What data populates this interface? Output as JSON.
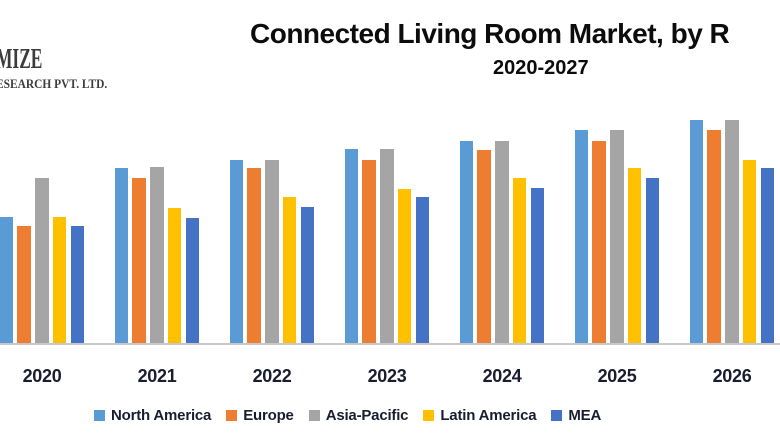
{
  "logo": {
    "line1": "MIZE",
    "line2": "ESEARCH PVT. LTD."
  },
  "header": {
    "title": "Connected Living Room Market, by R",
    "subtitle": "2020-2027"
  },
  "chart_data": {
    "type": "bar",
    "title": "Connected Living Room Market, by R",
    "subtitle": "2020-2027",
    "categories": [
      "2020",
      "2021",
      "2022",
      "2023",
      "2024",
      "2025",
      "2026"
    ],
    "series": [
      {
        "name": "North America",
        "color": "#5B9BD5",
        "values": [
          126,
          175,
          183,
          194,
          202,
          213,
          223
        ]
      },
      {
        "name": "Europe",
        "color": "#ED7D31",
        "values": [
          117,
          165,
          175,
          183,
          193,
          202,
          213
        ]
      },
      {
        "name": "Asia-Pacific",
        "color": "#A5A5A5",
        "values": [
          165,
          176,
          183,
          194,
          202,
          213,
          223
        ]
      },
      {
        "name": "Latin America",
        "color": "#FFC000",
        "values": [
          126,
          135,
          146,
          154,
          165,
          175,
          183
        ]
      },
      {
        "name": "MEA",
        "color": "#4472C4",
        "values": [
          117,
          125,
          136,
          146,
          155,
          165,
          175
        ]
      }
    ],
    "xlabel": "",
    "ylabel": "",
    "value_units": "relative height (no y-axis scale visible in image)",
    "ylim": [
      0,
      243
    ],
    "grid": false,
    "y_axis_shown": false,
    "legend_position": "bottom",
    "colors": {
      "background": "#FFFFFF",
      "axis_line": "#C8C8C8",
      "label_text": "#1A1D30",
      "title_text": "#0C0C0C"
    }
  }
}
